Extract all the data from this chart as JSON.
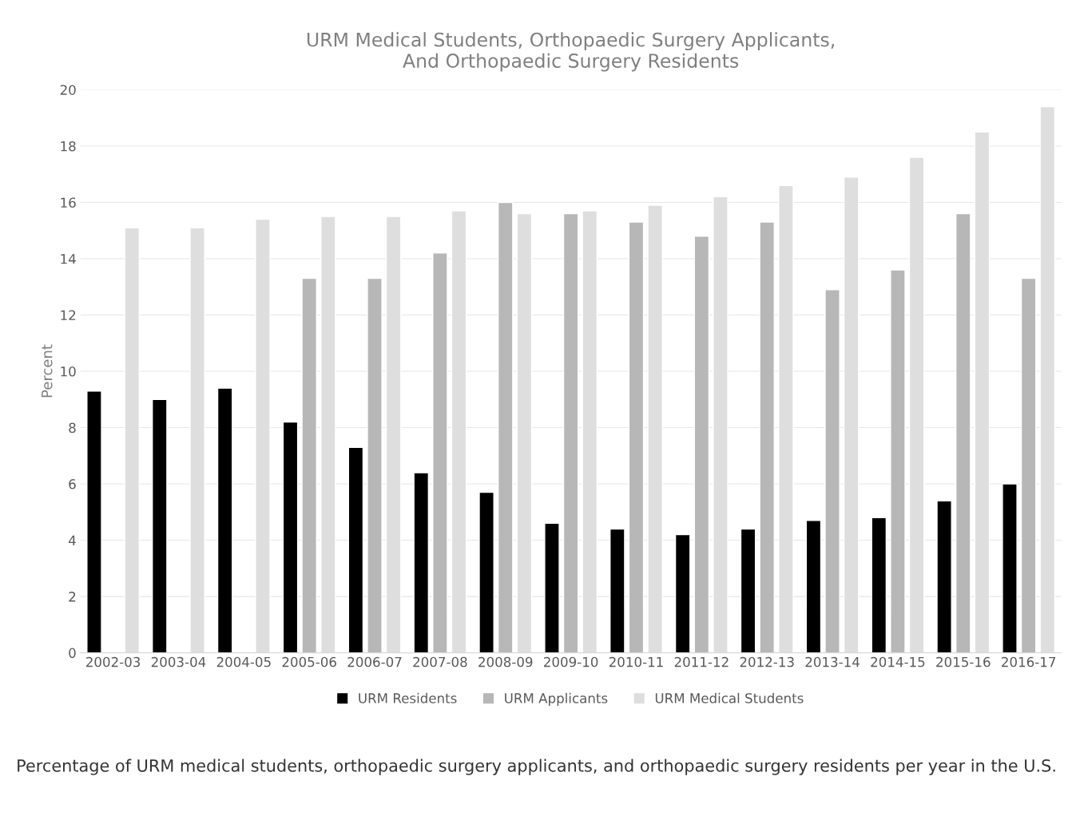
{
  "chart_data": {
    "type": "bar",
    "title": "URM Medical Students, Orthopaedic Surgery Applicants,\nAnd Orthopaedic Surgery Residents",
    "ylabel": "Percent",
    "categories": [
      "2002-03",
      "2003-04",
      "2004-05",
      "2005-06",
      "2006-07",
      "2007-08",
      "2008-09",
      "2009-10",
      "2010-11",
      "2011-12",
      "2012-13",
      "2013-14",
      "2014-15",
      "2015-16",
      "2016-17"
    ],
    "series": [
      {
        "name": "URM Residents",
        "color": "#000000",
        "values": [
          9.3,
          9.0,
          9.4,
          8.2,
          7.3,
          6.4,
          5.7,
          4.6,
          4.4,
          4.2,
          4.4,
          4.7,
          4.8,
          5.4,
          6.0
        ]
      },
      {
        "name": "URM Applicants",
        "color": "#b7b7b7",
        "values": [
          null,
          null,
          null,
          13.3,
          13.3,
          14.2,
          16.0,
          15.6,
          15.3,
          14.8,
          15.3,
          12.9,
          13.6,
          15.6,
          13.3
        ]
      },
      {
        "name": "URM Medical Students",
        "color": "#dedede",
        "values": [
          15.1,
          15.1,
          15.4,
          15.5,
          15.5,
          15.7,
          15.6,
          15.7,
          15.9,
          16.2,
          16.6,
          16.9,
          17.6,
          18.5,
          19.4
        ]
      }
    ],
    "ylim": [
      0,
      20
    ],
    "yticks": [
      0,
      2,
      4,
      6,
      8,
      10,
      12,
      14,
      16,
      18,
      20
    ],
    "grid": "y",
    "legend": "bottom",
    "annotations": [
      "Percentage of URM medical students, orthopaedic surgery applicants, and orthopaedic surgery residents per year in the U.S."
    ]
  }
}
